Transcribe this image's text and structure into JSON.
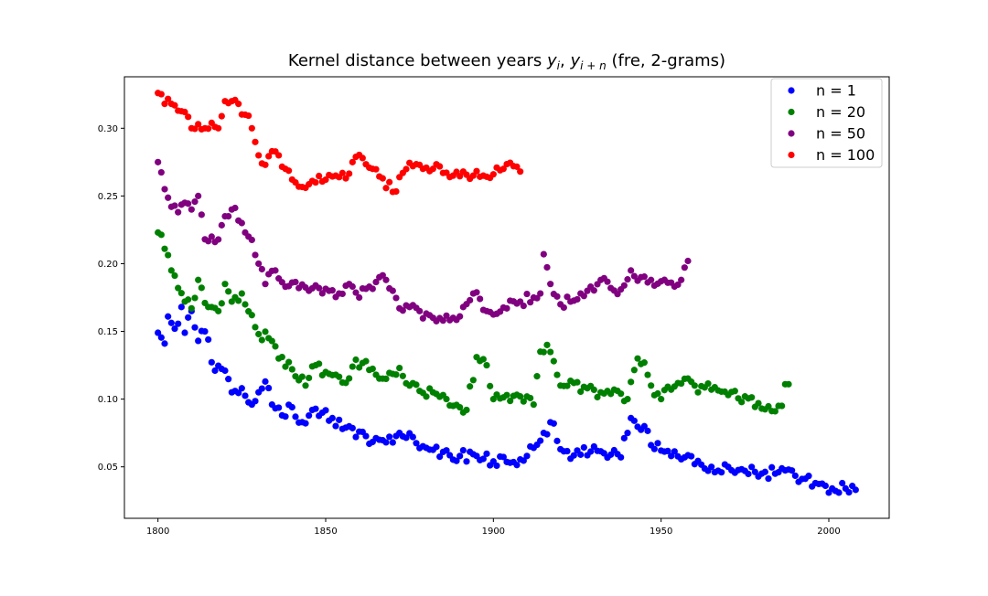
{
  "chart_data": {
    "type": "scatter",
    "title_parts": {
      "prefix": "Kernel distance between years ",
      "var1": "y",
      "sub1": "i",
      "sep": ", ",
      "var2": "y",
      "sub2": "i + n",
      "suffix": " (fre, 2-grams)"
    },
    "xlabel": "",
    "ylabel": "",
    "xlim": [
      1790,
      2018
    ],
    "ylim": [
      0.012,
      0.338
    ],
    "x_ticks": [
      1800,
      1850,
      1900,
      1950,
      2000
    ],
    "y_ticks": [
      0.05,
      0.1,
      0.15,
      0.2,
      0.25,
      0.3
    ],
    "y_tick_labels": [
      "0.05",
      "0.10",
      "0.15",
      "0.20",
      "0.25",
      "0.30"
    ],
    "grid": false,
    "legend_position": "top-right",
    "marker": "circle",
    "series": [
      {
        "name": "n = 1",
        "color": "#0000ff",
        "keypoints": [
          [
            1800,
            0.149
          ],
          [
            1802,
            0.141
          ],
          [
            1803,
            0.161
          ],
          [
            1805,
            0.152
          ],
          [
            1807,
            0.168
          ],
          [
            1808,
            0.149
          ],
          [
            1810,
            0.165
          ],
          [
            1812,
            0.143
          ],
          [
            1814,
            0.15
          ],
          [
            1817,
            0.121
          ],
          [
            1820,
            0.121
          ],
          [
            1822,
            0.105
          ],
          [
            1825,
            0.108
          ],
          [
            1828,
            0.096
          ],
          [
            1830,
            0.105
          ],
          [
            1832,
            0.113
          ],
          [
            1834,
            0.096
          ],
          [
            1837,
            0.088
          ],
          [
            1840,
            0.094
          ],
          [
            1843,
            0.083
          ],
          [
            1846,
            0.092
          ],
          [
            1849,
            0.09
          ],
          [
            1852,
            0.086
          ],
          [
            1855,
            0.078
          ],
          [
            1860,
            0.076
          ],
          [
            1863,
            0.067
          ],
          [
            1866,
            0.07
          ],
          [
            1870,
            0.068
          ],
          [
            1872,
            0.075
          ],
          [
            1876,
            0.072
          ],
          [
            1880,
            0.064
          ],
          [
            1885,
            0.061
          ],
          [
            1890,
            0.058
          ],
          [
            1895,
            0.058
          ],
          [
            1900,
            0.054
          ],
          [
            1905,
            0.053
          ],
          [
            1910,
            0.058
          ],
          [
            1912,
            0.064
          ],
          [
            1915,
            0.075
          ],
          [
            1918,
            0.082
          ],
          [
            1920,
            0.063
          ],
          [
            1923,
            0.056
          ],
          [
            1926,
            0.059
          ],
          [
            1930,
            0.065
          ],
          [
            1935,
            0.059
          ],
          [
            1938,
            0.057
          ],
          [
            1941,
            0.086
          ],
          [
            1945,
            0.08
          ],
          [
            1947,
            0.066
          ],
          [
            1950,
            0.062
          ],
          [
            1953,
            0.058
          ],
          [
            1957,
            0.057
          ],
          [
            1960,
            0.052
          ],
          [
            1965,
            0.05
          ],
          [
            1970,
            0.05
          ],
          [
            1975,
            0.047
          ],
          [
            1980,
            0.045
          ],
          [
            1985,
            0.046
          ],
          [
            1988,
            0.048
          ],
          [
            1992,
            0.041
          ],
          [
            1996,
            0.038
          ],
          [
            1999,
            0.036
          ],
          [
            2001,
            0.034
          ],
          [
            2005,
            0.034
          ],
          [
            2008,
            0.033
          ]
        ]
      },
      {
        "name": "n = 20",
        "color": "#008000",
        "keypoints": [
          [
            1800,
            0.223
          ],
          [
            1802,
            0.211
          ],
          [
            1804,
            0.195
          ],
          [
            1806,
            0.182
          ],
          [
            1808,
            0.172
          ],
          [
            1810,
            0.167
          ],
          [
            1812,
            0.188
          ],
          [
            1815,
            0.168
          ],
          [
            1818,
            0.165
          ],
          [
            1820,
            0.185
          ],
          [
            1822,
            0.172
          ],
          [
            1825,
            0.178
          ],
          [
            1828,
            0.162
          ],
          [
            1830,
            0.148
          ],
          [
            1833,
            0.145
          ],
          [
            1836,
            0.13
          ],
          [
            1840,
            0.122
          ],
          [
            1844,
            0.11
          ],
          [
            1847,
            0.125
          ],
          [
            1850,
            0.12
          ],
          [
            1853,
            0.118
          ],
          [
            1856,
            0.112
          ],
          [
            1858,
            0.124
          ],
          [
            1862,
            0.128
          ],
          [
            1865,
            0.118
          ],
          [
            1868,
            0.115
          ],
          [
            1872,
            0.123
          ],
          [
            1875,
            0.11
          ],
          [
            1878,
            0.106
          ],
          [
            1882,
            0.105
          ],
          [
            1885,
            0.103
          ],
          [
            1888,
            0.095
          ],
          [
            1892,
            0.092
          ],
          [
            1895,
            0.131
          ],
          [
            1898,
            0.125
          ],
          [
            1900,
            0.1
          ],
          [
            1904,
            0.103
          ],
          [
            1908,
            0.102
          ],
          [
            1912,
            0.096
          ],
          [
            1914,
            0.135
          ],
          [
            1916,
            0.14
          ],
          [
            1918,
            0.128
          ],
          [
            1920,
            0.11
          ],
          [
            1924,
            0.112
          ],
          [
            1928,
            0.108
          ],
          [
            1932,
            0.105
          ],
          [
            1936,
            0.107
          ],
          [
            1940,
            0.1
          ],
          [
            1943,
            0.13
          ],
          [
            1945,
            0.127
          ],
          [
            1947,
            0.11
          ],
          [
            1950,
            0.1
          ],
          [
            1953,
            0.107
          ],
          [
            1957,
            0.115
          ],
          [
            1960,
            0.11
          ],
          [
            1965,
            0.107
          ],
          [
            1970,
            0.103
          ],
          [
            1975,
            0.102
          ],
          [
            1980,
            0.093
          ],
          [
            1984,
            0.091
          ],
          [
            1986,
            0.095
          ],
          [
            1987,
            0.111
          ],
          [
            1988,
            0.111
          ]
        ]
      },
      {
        "name": "n = 50",
        "color": "#800080",
        "keypoints": [
          [
            1800,
            0.275
          ],
          [
            1802,
            0.255
          ],
          [
            1804,
            0.242
          ],
          [
            1806,
            0.238
          ],
          [
            1808,
            0.245
          ],
          [
            1810,
            0.24
          ],
          [
            1812,
            0.25
          ],
          [
            1814,
            0.218
          ],
          [
            1817,
            0.216
          ],
          [
            1820,
            0.235
          ],
          [
            1822,
            0.24
          ],
          [
            1825,
            0.23
          ],
          [
            1827,
            0.22
          ],
          [
            1830,
            0.2
          ],
          [
            1832,
            0.185
          ],
          [
            1835,
            0.195
          ],
          [
            1838,
            0.183
          ],
          [
            1842,
            0.182
          ],
          [
            1845,
            0.18
          ],
          [
            1848,
            0.182
          ],
          [
            1851,
            0.18
          ],
          [
            1854,
            0.178
          ],
          [
            1857,
            0.185
          ],
          [
            1860,
            0.175
          ],
          [
            1863,
            0.183
          ],
          [
            1866,
            0.19
          ],
          [
            1868,
            0.188
          ],
          [
            1870,
            0.18
          ],
          [
            1872,
            0.167
          ],
          [
            1875,
            0.168
          ],
          [
            1878,
            0.165
          ],
          [
            1882,
            0.16
          ],
          [
            1885,
            0.158
          ],
          [
            1888,
            0.16
          ],
          [
            1891,
            0.168
          ],
          [
            1894,
            0.178
          ],
          [
            1896,
            0.174
          ],
          [
            1898,
            0.165
          ],
          [
            1901,
            0.163
          ],
          [
            1904,
            0.167
          ],
          [
            1908,
            0.172
          ],
          [
            1912,
            0.175
          ],
          [
            1914,
            0.178
          ],
          [
            1915,
            0.207
          ],
          [
            1917,
            0.185
          ],
          [
            1920,
            0.17
          ],
          [
            1923,
            0.172
          ],
          [
            1926,
            0.178
          ],
          [
            1929,
            0.183
          ],
          [
            1932,
            0.188
          ],
          [
            1935,
            0.182
          ],
          [
            1938,
            0.181
          ],
          [
            1941,
            0.195
          ],
          [
            1944,
            0.19
          ],
          [
            1947,
            0.188
          ],
          [
            1950,
            0.187
          ],
          [
            1953,
            0.186
          ],
          [
            1956,
            0.188
          ],
          [
            1958,
            0.202
          ]
        ]
      },
      {
        "name": "n = 100",
        "color": "#ff0000",
        "keypoints": [
          [
            1800,
            0.326
          ],
          [
            1802,
            0.318
          ],
          [
            1804,
            0.318
          ],
          [
            1806,
            0.313
          ],
          [
            1808,
            0.312
          ],
          [
            1810,
            0.3
          ],
          [
            1812,
            0.303
          ],
          [
            1814,
            0.3
          ],
          [
            1816,
            0.304
          ],
          [
            1818,
            0.3
          ],
          [
            1820,
            0.32
          ],
          [
            1822,
            0.32
          ],
          [
            1824,
            0.318
          ],
          [
            1826,
            0.31
          ],
          [
            1828,
            0.3
          ],
          [
            1830,
            0.28
          ],
          [
            1832,
            0.273
          ],
          [
            1834,
            0.283
          ],
          [
            1836,
            0.28
          ],
          [
            1838,
            0.27
          ],
          [
            1841,
            0.26
          ],
          [
            1844,
            0.256
          ],
          [
            1847,
            0.26
          ],
          [
            1850,
            0.262
          ],
          [
            1853,
            0.265
          ],
          [
            1856,
            0.263
          ],
          [
            1858,
            0.275
          ],
          [
            1861,
            0.278
          ],
          [
            1864,
            0.27
          ],
          [
            1867,
            0.263
          ],
          [
            1870,
            0.253
          ],
          [
            1873,
            0.267
          ],
          [
            1876,
            0.272
          ],
          [
            1879,
            0.27
          ],
          [
            1882,
            0.27
          ],
          [
            1885,
            0.267
          ],
          [
            1888,
            0.265
          ],
          [
            1891,
            0.268
          ],
          [
            1894,
            0.265
          ],
          [
            1897,
            0.265
          ],
          [
            1900,
            0.266
          ],
          [
            1903,
            0.27
          ],
          [
            1906,
            0.272
          ],
          [
            1908,
            0.268
          ]
        ]
      }
    ]
  }
}
